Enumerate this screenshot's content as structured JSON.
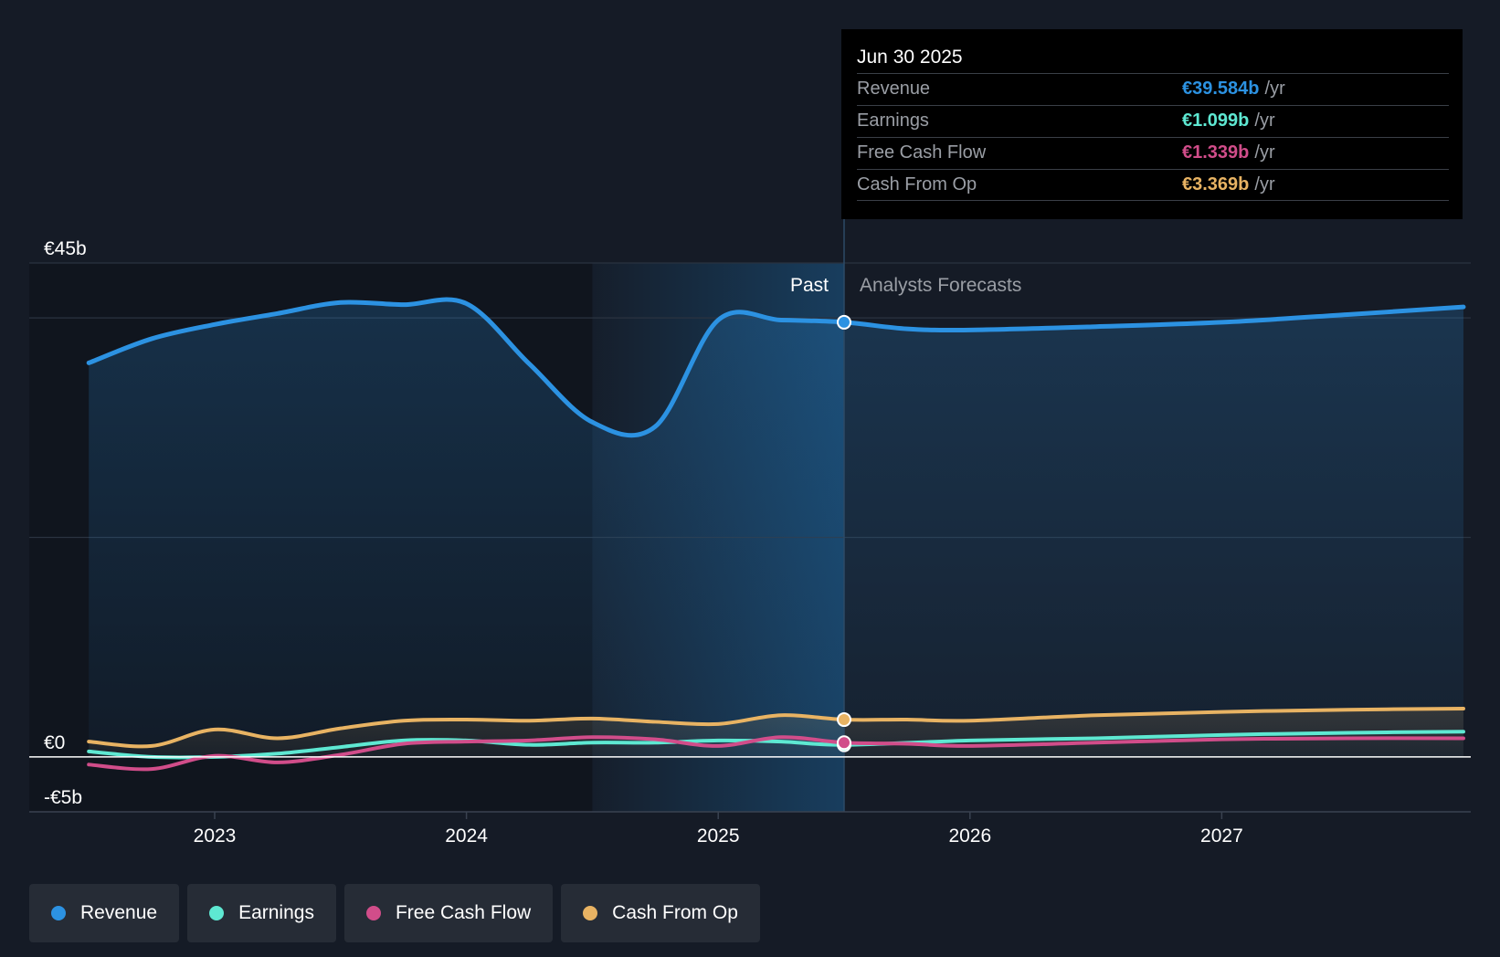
{
  "tooltip": {
    "date": "Jun 30 2025",
    "rows": [
      {
        "label": "Revenue",
        "value": "€39.584b",
        "unit": "/yr",
        "color": "#2c92e2"
      },
      {
        "label": "Earnings",
        "value": "€1.099b",
        "unit": "/yr",
        "color": "#5ee8d2"
      },
      {
        "label": "Free Cash Flow",
        "value": "€1.339b",
        "unit": "/yr",
        "color": "#d14d8a"
      },
      {
        "label": "Cash From Op",
        "value": "€3.369b",
        "unit": "/yr",
        "color": "#e8b363"
      }
    ]
  },
  "labels": {
    "past": "Past",
    "forecast": "Analysts Forecasts"
  },
  "legend": [
    {
      "label": "Revenue",
      "color": "#2c92e2"
    },
    {
      "label": "Earnings",
      "color": "#5ee8d2"
    },
    {
      "label": "Free Cash Flow",
      "color": "#d14d8a"
    },
    {
      "label": "Cash From Op",
      "color": "#e8b363"
    }
  ],
  "chart_data": {
    "type": "line",
    "title": "",
    "xlabel": "",
    "ylabel": "",
    "ylim": [
      -5,
      45
    ],
    "ytick_labels": [
      "€45b",
      "€0",
      "-€5b"
    ],
    "ytick_values": [
      45,
      0,
      -5
    ],
    "xtick_labels": [
      "2023",
      "2024",
      "2025",
      "2026",
      "2027"
    ],
    "xtick_values": [
      2023.0,
      2024.0,
      2025.0,
      2026.0,
      2027.0
    ],
    "x_range": [
      2022.25,
      2027.96
    ],
    "past_end": 2025.5,
    "highlight_start": 2024.5,
    "grid": true,
    "series": [
      {
        "name": "Revenue",
        "color": "#2c92e2",
        "area": true,
        "x": [
          2022.5,
          2022.75,
          2023.0,
          2023.25,
          2023.5,
          2023.75,
          2024.0,
          2024.25,
          2024.5,
          2024.75,
          2025.0,
          2025.25,
          2025.5,
          2025.75,
          2026.0,
          2026.5,
          2027.0,
          2027.5,
          2027.96
        ],
        "values": [
          35.9,
          38.1,
          39.4,
          40.4,
          41.4,
          41.2,
          41.3,
          35.8,
          30.5,
          30.1,
          39.8,
          39.8,
          39.6,
          39.0,
          38.9,
          39.2,
          39.6,
          40.3,
          41.0
        ]
      },
      {
        "name": "Earnings",
        "color": "#5ee8d2",
        "x": [
          2022.5,
          2022.75,
          2023.0,
          2023.25,
          2023.5,
          2023.75,
          2024.0,
          2024.25,
          2024.5,
          2024.75,
          2025.0,
          2025.25,
          2025.5,
          2026.0,
          2026.5,
          2027.0,
          2027.5,
          2027.96
        ],
        "values": [
          0.5,
          0.0,
          0.0,
          0.3,
          0.9,
          1.5,
          1.5,
          1.1,
          1.3,
          1.3,
          1.5,
          1.4,
          1.1,
          1.5,
          1.7,
          2.0,
          2.2,
          2.3
        ]
      },
      {
        "name": "Free Cash Flow",
        "color": "#d14d8a",
        "x": [
          2022.5,
          2022.75,
          2023.0,
          2023.25,
          2023.5,
          2023.75,
          2024.0,
          2024.25,
          2024.5,
          2024.75,
          2025.0,
          2025.25,
          2025.5,
          2025.75,
          2026.0,
          2026.5,
          2027.0,
          2027.5,
          2027.96
        ],
        "values": [
          -0.7,
          -1.1,
          0.1,
          -0.5,
          0.2,
          1.2,
          1.4,
          1.5,
          1.8,
          1.6,
          1.0,
          1.8,
          1.3,
          1.2,
          1.0,
          1.3,
          1.6,
          1.7,
          1.7
        ]
      },
      {
        "name": "Cash From Op",
        "color": "#e8b363",
        "x": [
          2022.5,
          2022.75,
          2023.0,
          2023.25,
          2023.5,
          2023.75,
          2024.0,
          2024.25,
          2024.5,
          2024.75,
          2025.0,
          2025.25,
          2025.5,
          2025.75,
          2026.0,
          2026.5,
          2027.0,
          2027.5,
          2027.96
        ],
        "values": [
          1.4,
          1.0,
          2.5,
          1.7,
          2.6,
          3.3,
          3.4,
          3.3,
          3.5,
          3.2,
          3.0,
          3.8,
          3.4,
          3.4,
          3.3,
          3.8,
          4.1,
          4.3,
          4.4
        ]
      }
    ]
  }
}
